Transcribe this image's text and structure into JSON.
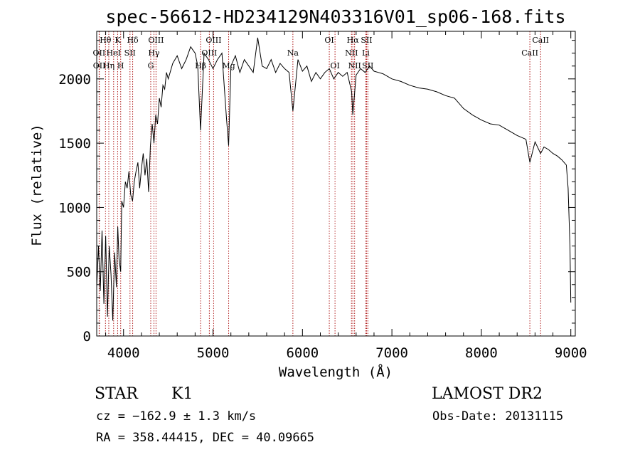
{
  "chart_data": {
    "type": "line",
    "title": "spec-56612-HD234129N403316V01_sp06-168.fits",
    "xlabel": "Wavelength (Å)",
    "ylabel": "Flux (relative)",
    "xlim": [
      3700,
      9050
    ],
    "ylim": [
      0,
      2370
    ],
    "x_ticks": [
      4000,
      5000,
      6000,
      7000,
      8000,
      9000
    ],
    "y_ticks": [
      0,
      500,
      1000,
      1500,
      2000
    ],
    "grid": false,
    "series": [
      {
        "x": [
          3700,
          3720,
          3740,
          3760,
          3780,
          3800,
          3820,
          3840,
          3860,
          3880,
          3900,
          3920,
          3935,
          3950,
          3968,
          3980,
          4000,
          4020,
          4040,
          4060,
          4080,
          4101,
          4120,
          4140,
          4160,
          4180,
          4200,
          4220,
          4240,
          4260,
          4280,
          4300,
          4320,
          4340,
          4360,
          4380,
          4400,
          4420,
          4440,
          4460,
          4480,
          4500,
          4550,
          4600,
          4650,
          4700,
          4750,
          4800,
          4830,
          4861,
          4900,
          4950,
          5000,
          5050,
          5100,
          5150,
          5175,
          5200,
          5250,
          5300,
          5350,
          5400,
          5450,
          5500,
          5550,
          5600,
          5650,
          5700,
          5750,
          5800,
          5850,
          5893,
          5950,
          6000,
          6050,
          6100,
          6150,
          6200,
          6250,
          6300,
          6350,
          6400,
          6450,
          6500,
          6550,
          6563,
          6600,
          6650,
          6700,
          6750,
          6800,
          6850,
          6900,
          6950,
          7000,
          7100,
          7200,
          7300,
          7400,
          7500,
          7600,
          7700,
          7800,
          7900,
          8000,
          8100,
          8200,
          8300,
          8400,
          8498,
          8542,
          8600,
          8662,
          8700,
          8750,
          8800,
          8850,
          8900,
          8950,
          8970,
          8990,
          9000
        ],
        "y": [
          380,
          700,
          350,
          820,
          250,
          780,
          150,
          700,
          480,
          120,
          650,
          380,
          850,
          600,
          500,
          1050,
          1000,
          1200,
          1150,
          1280,
          1100,
          1050,
          1200,
          1280,
          1350,
          1150,
          1300,
          1420,
          1250,
          1380,
          1120,
          1480,
          1650,
          1500,
          1720,
          1650,
          1850,
          1780,
          1950,
          1920,
          2050,
          2000,
          2120,
          2180,
          2080,
          2150,
          2250,
          2200,
          2100,
          1600,
          2200,
          2150,
          2080,
          2150,
          2200,
          1700,
          1480,
          2100,
          2180,
          2050,
          2150,
          2100,
          2050,
          2320,
          2100,
          2080,
          2150,
          2050,
          2120,
          2080,
          2050,
          1750,
          2150,
          2060,
          2100,
          1980,
          2050,
          2000,
          2050,
          2080,
          2000,
          2050,
          2020,
          2050,
          1900,
          1720,
          2030,
          2080,
          2050,
          2100,
          2060,
          2050,
          2040,
          2020,
          2000,
          1980,
          1950,
          1930,
          1920,
          1900,
          1870,
          1850,
          1770,
          1720,
          1680,
          1650,
          1640,
          1600,
          1560,
          1530,
          1350,
          1510,
          1420,
          1470,
          1450,
          1420,
          1400,
          1370,
          1330,
          1150,
          700,
          260
        ]
      }
    ],
    "line_markers": [
      {
        "label": "Hθ",
        "x": 3798,
        "row": 1
      },
      {
        "label": "K",
        "x": 3934,
        "row": 1
      },
      {
        "label": "Hδ",
        "x": 4102,
        "row": 1
      },
      {
        "label": "OIII",
        "x": 4363,
        "row": 1
      },
      {
        "label": "OIII",
        "x": 5007,
        "row": 1
      },
      {
        "label": "OI",
        "x": 6300,
        "row": 1
      },
      {
        "label": "Hα",
        "x": 6563,
        "row": 1
      },
      {
        "label": "SII",
        "x": 6717,
        "row": 1
      },
      {
        "label": "CaII",
        "x": 8662,
        "row": 1
      },
      {
        "label": "OII",
        "x": 3727,
        "row": 2
      },
      {
        "label": "HeI",
        "x": 3889,
        "row": 2
      },
      {
        "label": "SII",
        "x": 4072,
        "row": 2
      },
      {
        "label": "Hγ",
        "x": 4340,
        "row": 2
      },
      {
        "label": "OIII",
        "x": 4959,
        "row": 2
      },
      {
        "label": "Na",
        "x": 5893,
        "row": 2
      },
      {
        "label": "NII",
        "x": 6548,
        "row": 2
      },
      {
        "label": "Li",
        "x": 6708,
        "row": 2
      },
      {
        "label": "CaII",
        "x": 8542,
        "row": 2
      },
      {
        "label": "OII",
        "x": 3729,
        "row": 3
      },
      {
        "label": "Hη",
        "x": 3835,
        "row": 3
      },
      {
        "label": "H",
        "x": 3968,
        "row": 3
      },
      {
        "label": "G",
        "x": 4304,
        "row": 3
      },
      {
        "label": "Hβ",
        "x": 4861,
        "row": 3
      },
      {
        "label": "Mg",
        "x": 5175,
        "row": 3
      },
      {
        "label": "OI",
        "x": 6364,
        "row": 3
      },
      {
        "label": "NII",
        "x": 6583,
        "row": 3
      },
      {
        "label": "SII",
        "x": 6731,
        "row": 3
      }
    ]
  },
  "info": {
    "class_label": "STAR",
    "subclass": "K1",
    "survey": "LAMOST DR2",
    "redshift": "cz = −162.9 ± 1.3 km/s",
    "obs_date": "Obs-Date: 20131115",
    "coords": "RA = 358.44415, DEC =  40.09665"
  },
  "colors": {
    "line": "#000000",
    "marker": "#b22222",
    "text": "#000000"
  }
}
